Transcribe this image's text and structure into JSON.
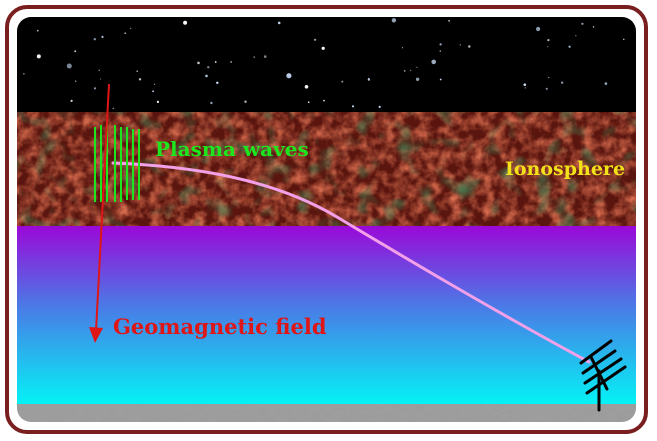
{
  "labels": {
    "plasma_waves": "Plasma waves",
    "ionosphere": "Ionosphere",
    "geomagnetic_field": "Geomagnetic field"
  },
  "colors": {
    "frame": "#7a1f1f",
    "space": "#000000",
    "ionosphere": "#6a1a12",
    "atmosphere_top": "#9b08d8",
    "atmosphere_bottom": "#05f0f5",
    "ground": "#9a9a9a",
    "plasma_waves": "#1ee61e",
    "ionosphere_label": "#f2e21a",
    "field_arrow": "#e01515",
    "ray_path": "#f2a0e8",
    "antenna": "#000000"
  },
  "icons": {
    "antenna": "antenna-icon"
  }
}
